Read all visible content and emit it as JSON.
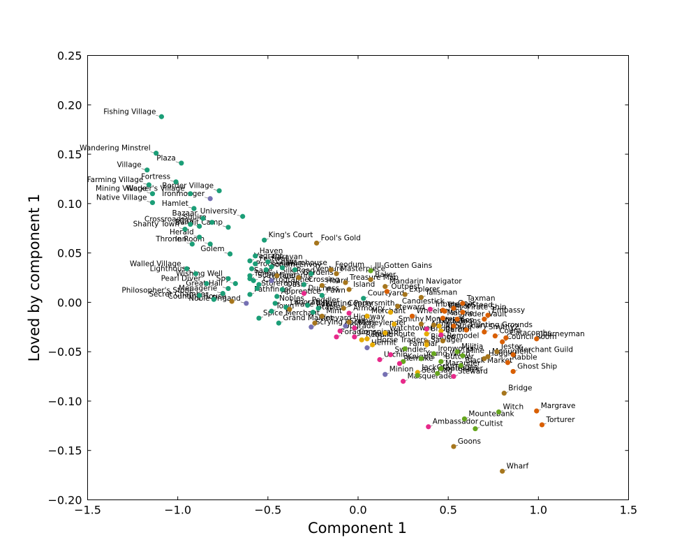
{
  "chart_data": {
    "type": "scatter",
    "title": "",
    "xlabel": "Component 1",
    "ylabel": "Loved by component 1",
    "xlim": [
      -1.5,
      1.5
    ],
    "ylim": [
      -0.2,
      0.25
    ],
    "xticks": [
      -1.5,
      -1.0,
      -0.5,
      0.0,
      0.5,
      1.0,
      1.5
    ],
    "xtick_labels": [
      "−1.5",
      "−1.0",
      "−0.5",
      "0.0",
      "0.5",
      "1.0",
      "1.5"
    ],
    "yticks": [
      -0.2,
      -0.15,
      -0.1,
      -0.05,
      0.0,
      0.05,
      0.1,
      0.15,
      0.2,
      0.25
    ],
    "ytick_labels": [
      "−0.20",
      "−0.15",
      "−0.10",
      "−0.05",
      "0.00",
      "0.05",
      "0.10",
      "0.15",
      "0.20",
      "0.25"
    ],
    "grid": false,
    "legend": "none",
    "colors": {
      "teal": "#1b9e77",
      "orange": "#d95f02",
      "purple": "#7570b3",
      "pink": "#e7298a",
      "green": "#66a61e",
      "yellow": "#e6ab02",
      "brown": "#a6761d"
    },
    "points": [
      {
        "label": "Fishing Village",
        "x": -1.09,
        "y": 0.188,
        "c": "teal"
      },
      {
        "label": "Wandering Minstrel",
        "x": -1.12,
        "y": 0.151,
        "c": "teal"
      },
      {
        "label": "Plaza",
        "x": -0.98,
        "y": 0.141,
        "c": "teal"
      },
      {
        "label": "Village",
        "x": -1.17,
        "y": 0.134,
        "c": "teal"
      },
      {
        "label": "Fortress",
        "x": -1.01,
        "y": 0.122,
        "c": "teal"
      },
      {
        "label": "Farming Village",
        "x": -1.16,
        "y": 0.119,
        "c": "teal"
      },
      {
        "label": "Border Village",
        "x": -0.77,
        "y": 0.113,
        "c": "teal"
      },
      {
        "label": "Worker's Village",
        "x": -0.93,
        "y": 0.11,
        "c": "teal"
      },
      {
        "label": "Mining Village",
        "x": -1.14,
        "y": 0.11,
        "c": "teal"
      },
      {
        "label": "Ironmonger",
        "x": -0.82,
        "y": 0.105,
        "c": "purple"
      },
      {
        "label": "Native Village",
        "x": -1.14,
        "y": 0.101,
        "c": "teal"
      },
      {
        "label": "Hamlet",
        "x": -0.91,
        "y": 0.095,
        "c": "teal"
      },
      {
        "label": "University",
        "x": -0.64,
        "y": 0.087,
        "c": "teal"
      },
      {
        "label": "Bazaar",
        "x": -0.86,
        "y": 0.085,
        "c": "teal"
      },
      {
        "label": "Squire",
        "x": -0.81,
        "y": 0.081,
        "c": "teal"
      },
      {
        "label": "Crossroads",
        "x": -0.93,
        "y": 0.079,
        "c": "teal"
      },
      {
        "label": "City",
        "x": -0.88,
        "y": 0.077,
        "c": "teal"
      },
      {
        "label": "Bandit Camp",
        "x": -0.72,
        "y": 0.076,
        "c": "teal"
      },
      {
        "label": "Shanty Town",
        "x": -0.96,
        "y": 0.074,
        "c": "teal"
      },
      {
        "label": "Herald",
        "x": -0.88,
        "y": 0.066,
        "c": "teal"
      },
      {
        "label": "King's Court",
        "x": -0.52,
        "y": 0.063,
        "c": "teal"
      },
      {
        "label": "Fool's Gold",
        "x": -0.23,
        "y": 0.06,
        "c": "brown"
      },
      {
        "label": "Throne Room",
        "x": -0.82,
        "y": 0.059,
        "c": "teal"
      },
      {
        "label": "Inn",
        "x": -0.92,
        "y": 0.059,
        "c": "teal"
      },
      {
        "label": "Golem",
        "x": -0.71,
        "y": 0.049,
        "c": "teal"
      },
      {
        "label": "Haven",
        "x": -0.57,
        "y": 0.047,
        "c": "teal"
      },
      {
        "label": "Vagrant",
        "x": -0.6,
        "y": 0.042,
        "c": "teal"
      },
      {
        "label": "Caravan",
        "x": -0.5,
        "y": 0.041,
        "c": "teal"
      },
      {
        "label": "Festival",
        "x": -0.57,
        "y": 0.039,
        "c": "teal"
      },
      {
        "label": "Cellar",
        "x": -0.48,
        "y": 0.036,
        "c": "teal"
      },
      {
        "label": "Warehouse",
        "x": -0.42,
        "y": 0.035,
        "c": "teal"
      },
      {
        "label": "Walled Village",
        "x": -0.95,
        "y": 0.034,
        "c": "teal"
      },
      {
        "label": "Procession",
        "x": -0.59,
        "y": 0.034,
        "c": "teal"
      },
      {
        "label": "Scheme",
        "x": -0.51,
        "y": 0.033,
        "c": "teal"
      },
      {
        "label": "Envoy",
        "x": -0.35,
        "y": 0.033,
        "c": "teal"
      },
      {
        "label": "Feodum",
        "x": -0.15,
        "y": 0.033,
        "c": "brown"
      },
      {
        "label": "Ill-Gotten Gains",
        "x": 0.07,
        "y": 0.032,
        "c": "green"
      },
      {
        "label": "Lighthouse",
        "x": -0.9,
        "y": 0.029,
        "c": "teal"
      },
      {
        "label": "Venture",
        "x": -0.26,
        "y": 0.029,
        "c": "teal"
      },
      {
        "label": "Masterpiece",
        "x": -0.12,
        "y": 0.029,
        "c": "brown"
      },
      {
        "label": "Sage",
        "x": -0.6,
        "y": 0.027,
        "c": "teal"
      },
      {
        "label": "Silk Road",
        "x": -0.45,
        "y": 0.027,
        "c": "brown"
      },
      {
        "label": "Gardens",
        "x": -0.33,
        "y": 0.025,
        "c": "brown"
      },
      {
        "label": "Wishing Well",
        "x": -0.72,
        "y": 0.024,
        "c": "teal"
      },
      {
        "label": "Tunnel",
        "x": -0.6,
        "y": 0.024,
        "c": "teal"
      },
      {
        "label": "Baker",
        "x": 0.07,
        "y": 0.023,
        "c": "brown"
      },
      {
        "label": "Scavenger",
        "x": -0.58,
        "y": 0.022,
        "c": "teal"
      },
      {
        "label": "Mandarin",
        "x": -0.48,
        "y": 0.022,
        "c": "purple"
      },
      {
        "label": "Treasure Map",
        "x": -0.07,
        "y": 0.02,
        "c": "brown"
      },
      {
        "label": "Pearl Diver",
        "x": -0.84,
        "y": 0.019,
        "c": "teal"
      },
      {
        "label": "Spy",
        "x": -0.68,
        "y": 0.019,
        "c": "teal"
      },
      {
        "label": "Cartographer",
        "x": -0.55,
        "y": 0.018,
        "c": "teal"
      },
      {
        "label": "Crossing",
        "x": -0.3,
        "y": 0.018,
        "c": "teal"
      },
      {
        "label": "Hoard",
        "x": -0.2,
        "y": 0.017,
        "c": "brown"
      },
      {
        "label": "Mandarin Navigator",
        "x": 0.15,
        "y": 0.016,
        "c": "brown"
      },
      {
        "label": "Great Hall",
        "x": -0.72,
        "y": 0.014,
        "c": "teal"
      },
      {
        "label": "Storeroom",
        "x": -0.56,
        "y": 0.014,
        "c": "teal"
      },
      {
        "label": "Oasis",
        "x": -0.42,
        "y": 0.013,
        "c": "teal"
      },
      {
        "label": "Island",
        "x": -0.05,
        "y": 0.013,
        "c": "brown"
      },
      {
        "label": "Menagerie",
        "x": -0.75,
        "y": 0.009,
        "c": "teal"
      },
      {
        "label": "Pathfinder",
        "x": -0.6,
        "y": 0.008,
        "c": "teal"
      },
      {
        "label": "Duchess",
        "x": -0.3,
        "y": 0.009,
        "c": "pink"
      },
      {
        "label": "Outpost",
        "x": 0.16,
        "y": 0.011,
        "c": "orange"
      },
      {
        "label": "Explorer",
        "x": 0.26,
        "y": 0.008,
        "c": "brown"
      },
      {
        "label": "Philosopher's Stone",
        "x": -0.88,
        "y": 0.007,
        "c": "teal"
      },
      {
        "label": "Apprentice",
        "x": -0.45,
        "y": 0.006,
        "c": "teal"
      },
      {
        "label": "Pawn",
        "x": -0.2,
        "y": 0.007,
        "c": "teal"
      },
      {
        "label": "Courtyard",
        "x": 0.03,
        "y": 0.004,
        "c": "teal"
      },
      {
        "label": "Talisman",
        "x": 0.35,
        "y": 0.005,
        "c": "brown"
      },
      {
        "label": "Secret Chamber",
        "x": -0.8,
        "y": 0.003,
        "c": "teal"
      },
      {
        "label": "Counting House",
        "x": -0.7,
        "y": 0.001,
        "c": "brown"
      },
      {
        "label": "Noble Brigand",
        "x": -0.62,
        "y": -0.001,
        "c": "purple"
      },
      {
        "label": "Nobles",
        "x": -0.46,
        "y": -0.001,
        "c": "teal"
      },
      {
        "label": "Peddler",
        "x": -0.28,
        "y": -0.003,
        "c": "teal"
      },
      {
        "label": "Taxman",
        "x": 0.58,
        "y": -0.001,
        "c": "orange"
      },
      {
        "label": "Laboratory",
        "x": -0.4,
        "y": -0.005,
        "c": "teal"
      },
      {
        "label": "Hunting Party",
        "x": -0.22,
        "y": -0.006,
        "c": "teal"
      },
      {
        "label": "Trade Route",
        "x": -0.38,
        "y": -0.007,
        "c": "brown"
      },
      {
        "label": "Coppersmith",
        "x": -0.08,
        "y": -0.006,
        "c": "brown"
      },
      {
        "label": "Candlestick",
        "x": 0.22,
        "y": -0.004,
        "c": "brown"
      },
      {
        "label": "Tribute",
        "x": 0.4,
        "y": -0.007,
        "c": "pink"
      },
      {
        "label": "Gear",
        "x": 0.53,
        "y": -0.006,
        "c": "orange"
      },
      {
        "label": "Trusty Steed",
        "x": 0.47,
        "y": -0.008,
        "c": "orange"
      },
      {
        "label": "Ghost",
        "x": 0.48,
        "y": -0.009,
        "c": "orange"
      },
      {
        "label": "Pirate Ship",
        "x": 0.58,
        "y": -0.01,
        "c": "orange"
      },
      {
        "label": "Embassy",
        "x": 0.72,
        "y": -0.013,
        "c": "orange"
      },
      {
        "label": "Town",
        "x": -0.48,
        "y": -0.009,
        "c": "teal"
      },
      {
        "label": "Stables",
        "x": -0.25,
        "y": -0.01,
        "c": "teal"
      },
      {
        "label": "Armoury",
        "x": -0.05,
        "y": -0.011,
        "c": "pink"
      },
      {
        "label": "Steward",
        "x": 0.18,
        "y": -0.01,
        "c": "yellow"
      },
      {
        "label": "Spice Merchant",
        "x": -0.55,
        "y": -0.016,
        "c": "teal"
      },
      {
        "label": "Mint",
        "x": -0.2,
        "y": -0.014,
        "c": "brown"
      },
      {
        "label": "Merchant",
        "x": 0.05,
        "y": -0.014,
        "c": "yellow"
      },
      {
        "label": "Wheelwright",
        "x": 0.3,
        "y": -0.014,
        "c": "orange"
      },
      {
        "label": "Magpie",
        "x": 0.47,
        "y": -0.016,
        "c": "orange"
      },
      {
        "label": "Trader",
        "x": 0.55,
        "y": -0.017,
        "c": "orange"
      },
      {
        "label": "Vault",
        "x": 0.7,
        "y": -0.017,
        "c": "orange"
      },
      {
        "label": "Grand Market",
        "x": -0.44,
        "y": -0.021,
        "c": "teal"
      },
      {
        "label": "Vineyard",
        "x": -0.24,
        "y": -0.021,
        "c": "brown"
      },
      {
        "label": "Highway",
        "x": -0.05,
        "y": -0.02,
        "c": "brown"
      },
      {
        "label": "Smithy",
        "x": 0.2,
        "y": -0.022,
        "c": "yellow"
      },
      {
        "label": "Monument",
        "x": 0.35,
        "y": -0.022,
        "c": "brown"
      },
      {
        "label": "Workshop",
        "x": 0.42,
        "y": -0.023,
        "c": "brown"
      },
      {
        "label": "Oracle",
        "x": 0.45,
        "y": -0.024,
        "c": "yellow"
      },
      {
        "label": "Goons",
        "x": 0.53,
        "y": -0.024,
        "c": "orange"
      },
      {
        "label": "Hunting Grounds",
        "x": 0.6,
        "y": -0.028,
        "c": "orange"
      },
      {
        "label": "Scrying Pool",
        "x": -0.26,
        "y": -0.025,
        "c": "purple"
      },
      {
        "label": "Chapel",
        "x": -0.07,
        "y": -0.024,
        "c": "purple"
      },
      {
        "label": "Moneylender",
        "x": -0.02,
        "y": -0.026,
        "c": "pink"
      },
      {
        "label": "Armory",
        "x": 0.38,
        "y": -0.027,
        "c": "pink"
      },
      {
        "label": "Apothecary",
        "x": 0.46,
        "y": -0.029,
        "c": "yellow"
      },
      {
        "label": "Smithy2",
        "x": 0.7,
        "y": -0.03,
        "c": "orange"
      },
      {
        "label": "Upgrade",
        "x": -0.1,
        "y": -0.029,
        "c": "pink"
      },
      {
        "label": "Watchtower",
        "x": 0.15,
        "y": -0.031,
        "c": "yellow"
      },
      {
        "label": "Bridge Troll",
        "x": 0.38,
        "y": -0.032,
        "c": "yellow"
      },
      {
        "label": "Baron",
        "x": 0.46,
        "y": -0.033,
        "c": "pink"
      },
      {
        "label": "Forager",
        "x": -0.12,
        "y": -0.035,
        "c": "pink"
      },
      {
        "label": "Conspirator",
        "x": -0.02,
        "y": -0.035,
        "c": "pink"
      },
      {
        "label": "Trade Route",
        "x": 0.05,
        "y": -0.037,
        "c": "yellow"
      },
      {
        "label": "Count",
        "x": 0.76,
        "y": -0.034,
        "c": "orange"
      },
      {
        "label": "Catacombs",
        "x": 0.82,
        "y": -0.036,
        "c": "orange"
      },
      {
        "label": "Journeyman",
        "x": 0.99,
        "y": -0.037,
        "c": "orange"
      },
      {
        "label": "Rebuild",
        "x": 0.02,
        "y": -0.038,
        "c": "yellow"
      },
      {
        "label": "Remodel",
        "x": 0.47,
        "y": -0.039,
        "c": "brown"
      },
      {
        "label": "Bishop",
        "x": 0.38,
        "y": -0.04,
        "c": "brown"
      },
      {
        "label": "Council Room",
        "x": 0.8,
        "y": -0.04,
        "c": "orange"
      },
      {
        "label": "Horse Traders",
        "x": 0.08,
        "y": -0.043,
        "c": "yellow"
      },
      {
        "label": "Salvager",
        "x": 0.38,
        "y": -0.043,
        "c": "yellow"
      },
      {
        "label": "Hermit",
        "x": 0.05,
        "y": -0.046,
        "c": "purple"
      },
      {
        "label": "Familiar",
        "x": 0.26,
        "y": -0.047,
        "c": "green"
      },
      {
        "label": "Militia",
        "x": 0.55,
        "y": -0.05,
        "c": "green"
      },
      {
        "label": "Jester",
        "x": 0.77,
        "y": -0.05,
        "c": "brown"
      },
      {
        "label": "Ironworks",
        "x": 0.42,
        "y": -0.052,
        "c": "green"
      },
      {
        "label": "Swindler",
        "x": 0.18,
        "y": -0.053,
        "c": "pink"
      },
      {
        "label": "Mine",
        "x": 0.58,
        "y": -0.054,
        "c": "green"
      },
      {
        "label": "Monument",
        "x": 0.72,
        "y": -0.055,
        "c": "brown"
      },
      {
        "label": "Merchant Guild",
        "x": 0.86,
        "y": -0.053,
        "c": "orange"
      },
      {
        "label": "Urchin",
        "x": 0.12,
        "y": -0.058,
        "c": "pink"
      },
      {
        "label": "Young Witch",
        "x": 0.35,
        "y": -0.057,
        "c": "green"
      },
      {
        "label": "Haggler",
        "x": 0.7,
        "y": -0.057,
        "c": "brown"
      },
      {
        "label": "Knights",
        "x": 0.25,
        "y": -0.06,
        "c": "green"
      },
      {
        "label": "Butcher",
        "x": 0.46,
        "y": -0.06,
        "c": "green"
      },
      {
        "label": "Rabble",
        "x": 0.83,
        "y": -0.061,
        "c": "orange"
      },
      {
        "label": "Remake",
        "x": 0.23,
        "y": -0.062,
        "c": "pink"
      },
      {
        "label": "Black Market",
        "x": 0.57,
        "y": -0.064,
        "c": "green"
      },
      {
        "label": "Marauder",
        "x": 0.46,
        "y": -0.067,
        "c": "green"
      },
      {
        "label": "JackOfAllTrades",
        "x": 0.33,
        "y": -0.071,
        "c": "yellow"
      },
      {
        "label": "Soothsayer",
        "x": 0.44,
        "y": -0.072,
        "c": "green"
      },
      {
        "label": "Ghost Ship",
        "x": 0.86,
        "y": -0.07,
        "c": "orange"
      },
      {
        "label": "Minion",
        "x": 0.15,
        "y": -0.073,
        "c": "purple"
      },
      {
        "label": "Sea Hag",
        "x": 0.33,
        "y": -0.074,
        "c": "green"
      },
      {
        "label": "Steward",
        "x": 0.53,
        "y": -0.075,
        "c": "pink"
      },
      {
        "label": "Masquerade",
        "x": 0.25,
        "y": -0.08,
        "c": "pink"
      },
      {
        "label": "Bridge",
        "x": 0.81,
        "y": -0.092,
        "c": "brown"
      },
      {
        "label": "Witch",
        "x": 0.78,
        "y": -0.111,
        "c": "green"
      },
      {
        "label": "Margrave",
        "x": 0.99,
        "y": -0.11,
        "c": "orange"
      },
      {
        "label": "Mountebank",
        "x": 0.59,
        "y": -0.118,
        "c": "green"
      },
      {
        "label": "Torturer",
        "x": 1.02,
        "y": -0.124,
        "c": "orange"
      },
      {
        "label": "Ambassador",
        "x": 0.39,
        "y": -0.126,
        "c": "pink"
      },
      {
        "label": "Cultist",
        "x": 0.65,
        "y": -0.128,
        "c": "green"
      },
      {
        "label": "Goons",
        "x": 0.53,
        "y": -0.146,
        "c": "brown"
      },
      {
        "label": "Wharf",
        "x": 0.8,
        "y": -0.171,
        "c": "brown"
      }
    ]
  }
}
